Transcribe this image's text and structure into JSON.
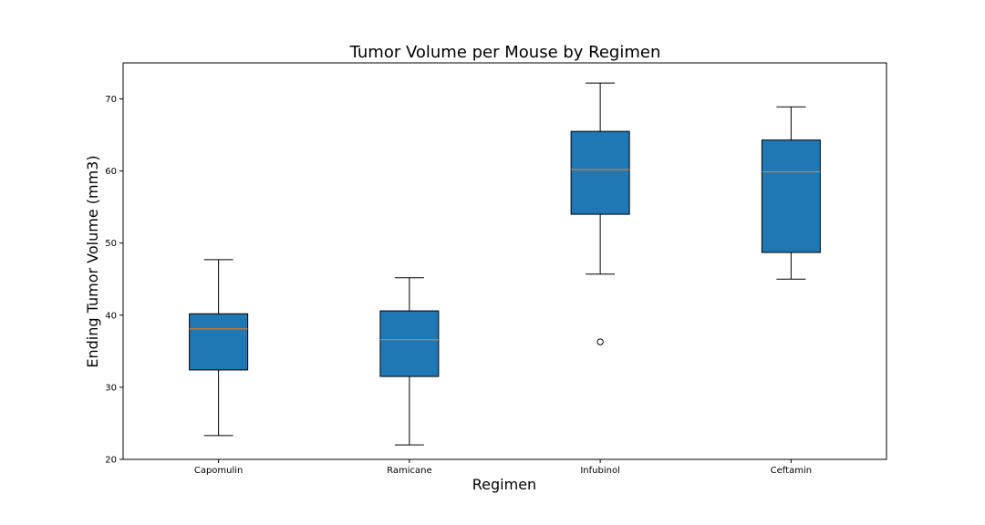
{
  "chart_data": {
    "type": "box",
    "title": "Tumor Volume per Mouse by Regimen",
    "xlabel": "Regimen",
    "ylabel": "Ending Tumor Volume (mm3)",
    "ylim": [
      20,
      75
    ],
    "yticks": [
      20,
      30,
      40,
      50,
      60,
      70
    ],
    "grid": false,
    "categories": [
      "Capomulin",
      "Ramicane",
      "Infubinol",
      "Ceftamin"
    ],
    "boxes": [
      {
        "whisker_low": 23.3,
        "q1": 32.4,
        "median": 38.1,
        "q3": 40.2,
        "whisker_high": 47.7,
        "outliers": []
      },
      {
        "whisker_low": 22.0,
        "q1": 31.5,
        "median": 36.6,
        "q3": 40.6,
        "whisker_high": 45.2,
        "outliers": []
      },
      {
        "whisker_low": 45.7,
        "q1": 54.0,
        "median": 60.2,
        "q3": 65.5,
        "whisker_high": 72.2,
        "outliers": [
          36.3
        ]
      },
      {
        "whisker_low": 45.0,
        "q1": 48.7,
        "median": 59.9,
        "q3": 64.3,
        "whisker_high": 68.9,
        "outliers": []
      }
    ],
    "colors": {
      "box_fill": "#1f77b4",
      "median": "#ff7f0e",
      "line": "#000000"
    }
  }
}
